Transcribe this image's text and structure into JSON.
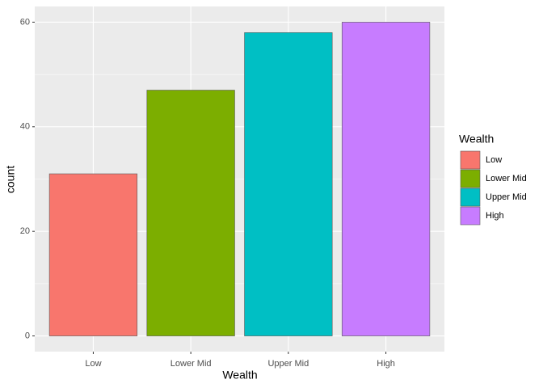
{
  "chart_data": {
    "type": "bar",
    "x_label": "Wealth",
    "y_label": "count",
    "categories": [
      "Low",
      "Lower Mid",
      "Upper Mid",
      "High"
    ],
    "values": [
      31,
      47,
      58,
      60
    ],
    "colors": [
      "#F8766D",
      "#7CAE00",
      "#00BFC4",
      "#C77CFF"
    ],
    "ylim": [
      -3,
      63
    ],
    "yticks": [
      0,
      20,
      40,
      60
    ],
    "grid": true,
    "legend": {
      "title": "Wealth",
      "position": "right"
    }
  }
}
